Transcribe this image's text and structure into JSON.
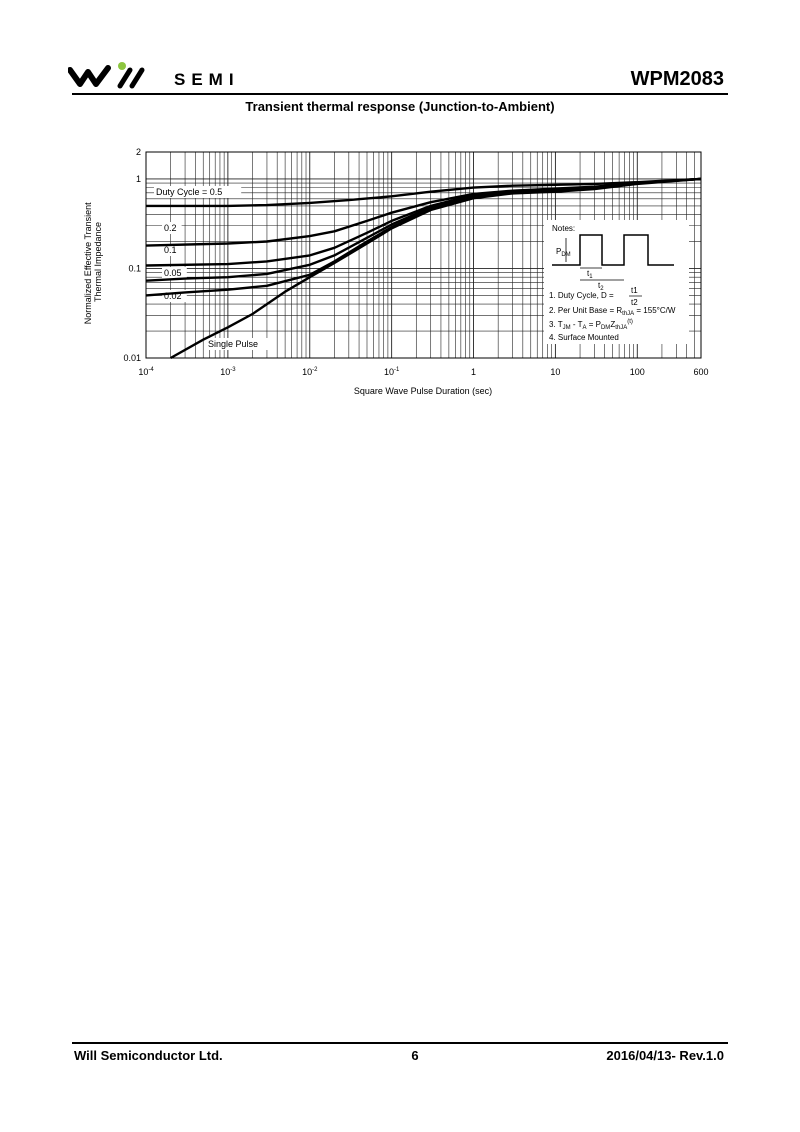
{
  "header": {
    "brand": "SEMI",
    "part_number": "WPM2083"
  },
  "footer": {
    "company": "Will Semiconductor Ltd.",
    "page": "6",
    "revision": "2016/04/13- Rev.1.0"
  },
  "colors": {
    "logo_accent": "#8dc63f",
    "ink": "#000000",
    "grid": "#222222"
  },
  "chart_data": {
    "type": "line",
    "title": "Transient thermal response (Junction-to-Ambient)",
    "xlabel": "Square Wave Pulse Duration (sec)",
    "ylabel": [
      "Normalized Effective Transient",
      "Thermal Impedance"
    ],
    "xscale": "log",
    "yscale": "log",
    "xlim": [
      0.0001,
      600
    ],
    "ylim": [
      0.01,
      2
    ],
    "grid": true,
    "xtick_values": [
      0.0001,
      0.001,
      0.01,
      0.1,
      1,
      10,
      100,
      600
    ],
    "xtick_labels": [
      {
        "base": "10",
        "exp": "-4"
      },
      {
        "base": "10",
        "exp": "-3"
      },
      {
        "base": "10",
        "exp": "-2"
      },
      {
        "base": "10",
        "exp": "-1"
      },
      {
        "base": "1",
        "exp": ""
      },
      {
        "base": "10",
        "exp": ""
      },
      {
        "base": "100",
        "exp": ""
      },
      {
        "base": "600",
        "exp": ""
      }
    ],
    "ytick_values": [
      0.01,
      0.1,
      1,
      2
    ],
    "ytick_labels": [
      "0.01",
      "0.1",
      "1",
      "2"
    ],
    "series": [
      {
        "name": "Duty Cycle = 0.5",
        "x": [
          0.0001,
          0.001,
          0.003,
          0.01,
          0.03,
          0.1,
          0.3,
          1,
          3,
          10,
          30,
          100,
          300,
          600
        ],
        "y": [
          0.5,
          0.5,
          0.51,
          0.54,
          0.58,
          0.64,
          0.72,
          0.8,
          0.84,
          0.86,
          0.88,
          0.92,
          0.97,
          1.0
        ]
      },
      {
        "name": "0.2",
        "x": [
          0.0001,
          0.001,
          0.003,
          0.01,
          0.02,
          0.05,
          0.1,
          0.3,
          1,
          3,
          10,
          30,
          100,
          600
        ],
        "y": [
          0.18,
          0.19,
          0.2,
          0.23,
          0.26,
          0.34,
          0.42,
          0.55,
          0.68,
          0.74,
          0.78,
          0.82,
          0.9,
          1.0
        ]
      },
      {
        "name": "0.1",
        "x": [
          0.0001,
          0.001,
          0.003,
          0.01,
          0.02,
          0.05,
          0.1,
          0.3,
          1,
          3,
          10,
          30,
          100,
          600
        ],
        "y": [
          0.108,
          0.112,
          0.12,
          0.14,
          0.17,
          0.25,
          0.34,
          0.5,
          0.66,
          0.72,
          0.75,
          0.8,
          0.9,
          1.0
        ]
      },
      {
        "name": "0.05",
        "x": [
          0.0001,
          0.0003,
          0.001,
          0.003,
          0.01,
          0.02,
          0.05,
          0.1,
          0.3,
          1,
          3,
          10,
          30,
          100,
          600
        ],
        "y": [
          0.073,
          0.077,
          0.08,
          0.087,
          0.11,
          0.14,
          0.22,
          0.31,
          0.48,
          0.64,
          0.71,
          0.74,
          0.79,
          0.9,
          1.0
        ]
      },
      {
        "name": "0.02",
        "x": [
          0.0001,
          0.0003,
          0.001,
          0.003,
          0.01,
          0.02,
          0.05,
          0.1,
          0.3,
          1,
          3,
          10,
          30,
          100,
          600
        ],
        "y": [
          0.05,
          0.054,
          0.058,
          0.064,
          0.085,
          0.12,
          0.2,
          0.29,
          0.46,
          0.62,
          0.7,
          0.73,
          0.78,
          0.9,
          1.0
        ]
      },
      {
        "name": "Single Pulse",
        "x": [
          0.0002,
          0.0005,
          0.001,
          0.002,
          0.005,
          0.01,
          0.02,
          0.05,
          0.1,
          0.3,
          1,
          3,
          10,
          30,
          100,
          600
        ],
        "y": [
          0.01,
          0.016,
          0.022,
          0.031,
          0.055,
          0.08,
          0.115,
          0.19,
          0.28,
          0.45,
          0.61,
          0.69,
          0.72,
          0.77,
          0.88,
          1.0
        ]
      }
    ],
    "curve_labels": [
      "Duty Cycle = 0.5",
      "0.2",
      "0.1",
      "0.05",
      "0.02",
      "Single Pulse"
    ],
    "notes": {
      "heading": "Notes:",
      "pdm_label": "P",
      "pdm_sub": "DM",
      "t1_label": "t",
      "t1_sub": "1",
      "t2_label": "t",
      "t2_sub": "2",
      "items": [
        {
          "pre": "1. Duty Cycle, D = ",
          "frac_num": "t1",
          "frac_den": "t2"
        },
        {
          "pre": "2. Per Unit Base = R",
          "sub": "thJA",
          "post": " = 155°C/W"
        },
        {
          "pre": "3. T",
          "sub1": "JM",
          "mid1": " - T",
          "sub2": "A",
          "mid2": " = P",
          "sub3": "DM",
          "mid3": "Z",
          "sub4": "thJA",
          "sup": "(t)"
        },
        {
          "pre": "4. Surface Mounted"
        }
      ]
    }
  }
}
